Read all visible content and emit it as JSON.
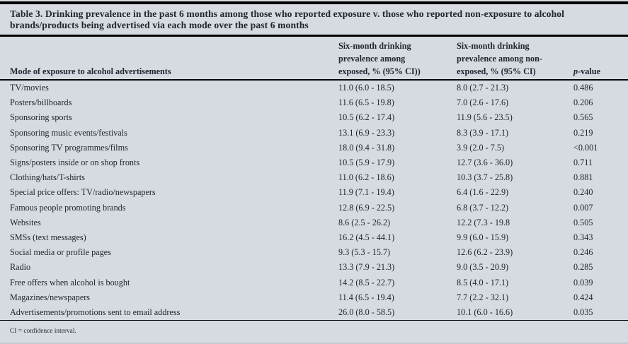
{
  "table": {
    "title": "Table 3. Drinking prevalence in the past 6 months among those who reported exposure v. those who reported non-exposure to alcohol brands/products being advertised via each mode over the past 6 months",
    "columns": {
      "mode": "Mode of exposure to alcohol advertisements",
      "exposed": {
        "lines": [
          "Six-month drinking",
          "prevalence among",
          "exposed, % (95% CI))"
        ]
      },
      "non_exposed": {
        "lines": [
          "Six-month drinking",
          "prevalence among non-",
          "exposed, % (95% CI)"
        ]
      },
      "p_value": {
        "italic": "p",
        "rest": "-value"
      }
    },
    "rows": [
      {
        "mode": "TV/movies",
        "exposed": "11.0 (6.0 - 18.5)",
        "non_exposed": "8.0 (2.7 - 21.3)",
        "p": "0.486"
      },
      {
        "mode": "Posters/billboards",
        "exposed": "11.6 (6.5 - 19.8)",
        "non_exposed": "7.0 (2.6 - 17.6)",
        "p": "0.206"
      },
      {
        "mode": "Sponsoring sports",
        "exposed": "10.5 (6.2 - 17.4)",
        "non_exposed": "11.9 (5.6 - 23.5)",
        "p": "0.565"
      },
      {
        "mode": "Sponsoring music events/festivals",
        "exposed": "13.1 (6.9 - 23.3)",
        "non_exposed": "8.3 (3.9 - 17.1)",
        "p": "0.219"
      },
      {
        "mode": "Sponsoring TV programmes/films",
        "exposed": "18.0 (9.4 - 31.8)",
        "non_exposed": "3.9 (2.0 - 7.5)",
        "p": "<0.001"
      },
      {
        "mode": "Signs/posters inside or on shop fronts",
        "exposed": "10.5 (5.9 - 17.9)",
        "non_exposed": "12.7 (3.6 - 36.0)",
        "p": "0.711"
      },
      {
        "mode": "Clothing/hats/T-shirts",
        "exposed": "11.0 (6.2 - 18.6)",
        "non_exposed": "10.3 (3.7 - 25.8)",
        "p": "0.881"
      },
      {
        "mode": "Special price offers: TV/radio/newspapers",
        "exposed": "11.9 (7.1 - 19.4)",
        "non_exposed": "6.4 (1.6 - 22.9)",
        "p": "0.240"
      },
      {
        "mode": "Famous people promoting brands",
        "exposed": "12.8 (6.9 - 22.5)",
        "non_exposed": "6.8 (3.7 - 12.2)",
        "p": "0.007"
      },
      {
        "mode": "Websites",
        "exposed": "8.6 (2.5 - 26.2)",
        "non_exposed": "12.2 (7.3 - 19.8",
        "p": "0.505"
      },
      {
        "mode": "SMSs (text messages)",
        "exposed": "16.2 (4.5 - 44.1)",
        "non_exposed": "9.9 (6.0 - 15.9)",
        "p": "0.343"
      },
      {
        "mode": "Social media or profile pages",
        "exposed": "9.3 (5.3 - 15.7)",
        "non_exposed": "12.6 (6.2 - 23.9)",
        "p": "0.246"
      },
      {
        "mode": "Radio",
        "exposed": "13.3 (7.9 - 21.3)",
        "non_exposed": "9.0 (3.5 - 20.9)",
        "p": "0.285"
      },
      {
        "mode": "Free offers when alcohol is bought",
        "exposed": "14.2 (8.5 - 22.7)",
        "non_exposed": "8.5 (4.0 - 17.1)",
        "p": "0.039"
      },
      {
        "mode": "Magazines/newspapers",
        "exposed": "11.4 (6.5 - 19.4)",
        "non_exposed": "7.7 (2.2 - 32.1)",
        "p": "0.424"
      },
      {
        "mode": "Advertisements/promotions sent to email address",
        "exposed": "26.0 (8.0 - 58.5)",
        "non_exposed": "10.1 (6.0 - 16.6)",
        "p": "0.035"
      }
    ],
    "footnote": "CI = confidence interval."
  },
  "colors": {
    "background": "#d6dae1",
    "text": "#23262f",
    "rule": "#000000"
  }
}
